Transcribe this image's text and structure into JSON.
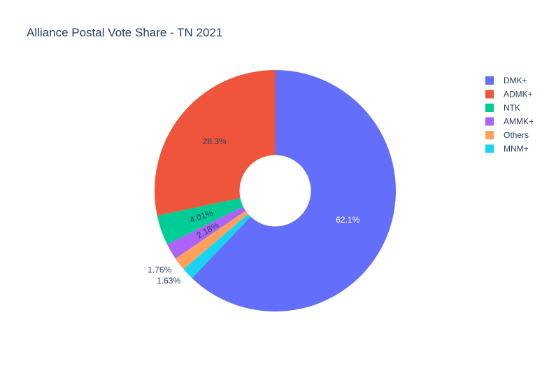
{
  "chart_data": {
    "type": "pie",
    "hole": true,
    "title": "Alliance Postal Vote Share - TN 2021",
    "legend_position": "right",
    "slices": [
      {
        "name": "DMK+",
        "value": 62.1,
        "label": "62.1%",
        "color": "#636efa",
        "label_color": "#ffffff",
        "label_position": "inside"
      },
      {
        "name": "MNM+",
        "value": 1.63,
        "label": "1.63%",
        "color": "#19d3f3",
        "label_color": "#2a3f5f",
        "label_position": "outside"
      },
      {
        "name": "Others",
        "value": 1.76,
        "label": "1.76%",
        "color": "#ffa15a",
        "label_color": "#2a3f5f",
        "label_position": "outside"
      },
      {
        "name": "AMMK+",
        "value": 2.18,
        "label": "2.18%",
        "color": "#ab63fa",
        "label_color": "#2a3f5f",
        "label_position": "inside"
      },
      {
        "name": "NTK",
        "value": 4.01,
        "label": "4.01%",
        "color": "#00cc96",
        "label_color": "#2a3f5f",
        "label_position": "inside"
      },
      {
        "name": "ADMK+",
        "value": 28.3,
        "label": "28.3%",
        "color": "#ef553b",
        "label_color": "#2a3f5f",
        "label_position": "inside"
      }
    ],
    "legend": [
      {
        "name": "DMK+",
        "color": "#636efa"
      },
      {
        "name": "ADMK+",
        "color": "#ef553b"
      },
      {
        "name": "NTK",
        "color": "#00cc96"
      },
      {
        "name": "AMMK+",
        "color": "#ab63fa"
      },
      {
        "name": "Others",
        "color": "#ffa15a"
      },
      {
        "name": "MNM+",
        "color": "#19d3f3"
      }
    ]
  }
}
